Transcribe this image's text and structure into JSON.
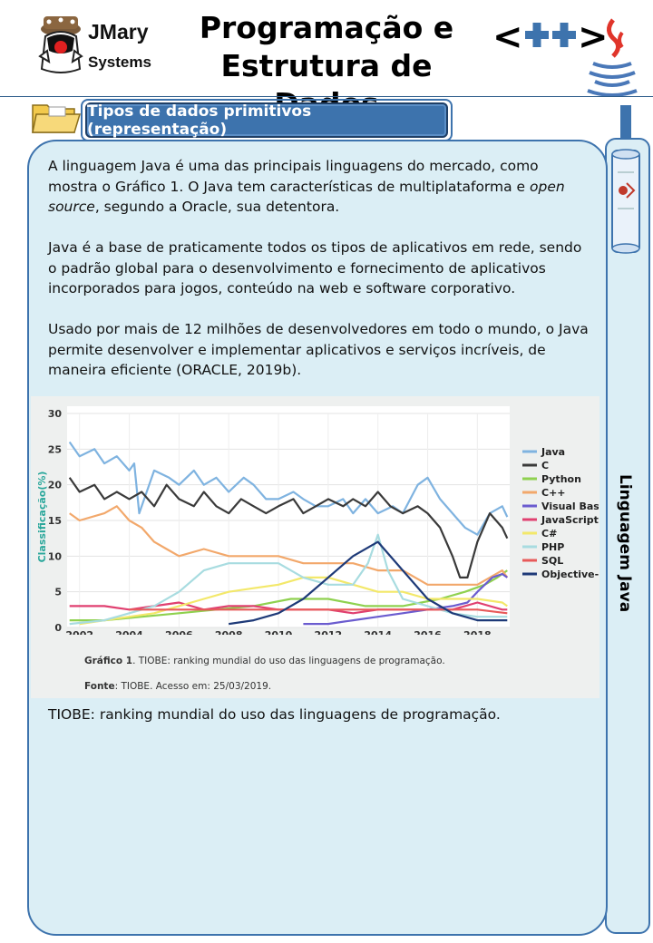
{
  "header": {
    "brand_name": "JMary",
    "brand_sub": "Systems",
    "title_line1": "Programação e",
    "title_line2": "Estrutura de Dados",
    "cpp_label": "<++>"
  },
  "section": {
    "label": "Tipos de dados primitivos (representação)",
    "side_label": "Linguagem Java"
  },
  "paragraphs": {
    "p1_a": "A linguagem Java é uma das principais linguagens do mercado, como mostra o Gráfico 1. O Java tem características de multiplataforma e ",
    "p1_em": "open source",
    "p1_b": ", segundo a Oracle, sua detentora.",
    "p2": "Java é a base de praticamente todos os tipos de aplicativos em rede, sendo o padrão global para o desenvolvimento e fornecimento de aplicativos incorporados para jogos, conteúdo na web e software corporativo.",
    "p3": "Usado por mais de 12 milhões de desenvolvedores em todo o mundo, o Java permite desenvolver e implementar aplicativos e serviços incríveis, de maneira eficiente (ORACLE, 2019b).",
    "after_chart": "TIOBE: ranking mundial do uso das linguagens de programação."
  },
  "caption": {
    "fig_label": "Gráfico 1",
    "fig_text": ". TIOBE: ranking mundial do uso das linguagens de programação.",
    "src_label": "Fonte",
    "src_text": ": TIOBE. Acesso em: 25/03/2019."
  },
  "colors": {
    "accent": "#3d73ad",
    "panel": "#dbeef5"
  },
  "chart_data": {
    "type": "line",
    "ylabel": "Classificação(%)",
    "xlabel": "",
    "xlim": [
      2001.5,
      2019.3
    ],
    "ylim": [
      0,
      30
    ],
    "xticks": [
      2002,
      2004,
      2006,
      2008,
      2010,
      2012,
      2014,
      2016,
      2018
    ],
    "yticks": [
      0,
      5,
      10,
      15,
      20,
      25,
      30
    ],
    "grid": true,
    "legend_position": "right",
    "series": [
      {
        "name": "Java",
        "color": "#7fb3e0",
        "x": [
          2001.6,
          2002,
          2002.6,
          2003,
          2003.5,
          2004,
          2004.2,
          2004.4,
          2005,
          2005.6,
          2006,
          2006.6,
          2007,
          2007.5,
          2008,
          2008.6,
          2009,
          2009.5,
          2010,
          2010.6,
          2011,
          2011.5,
          2012,
          2012.6,
          2013,
          2013.5,
          2014,
          2014.6,
          2015,
          2015.6,
          2016,
          2016.5,
          2017,
          2017.5,
          2018,
          2018.5,
          2019,
          2019.2
        ],
        "y": [
          26,
          24,
          25,
          23,
          24,
          22,
          23,
          16,
          22,
          21,
          20,
          22,
          20,
          21,
          19,
          21,
          20,
          18,
          18,
          19,
          18,
          17,
          17,
          18,
          16,
          18,
          16,
          17,
          16,
          20,
          21,
          18,
          16,
          14,
          13,
          16,
          17,
          15.5
        ]
      },
      {
        "name": "C",
        "color": "#3a3a3a",
        "x": [
          2001.6,
          2002,
          2002.6,
          2003,
          2003.5,
          2004,
          2004.5,
          2005,
          2005.5,
          2006,
          2006.6,
          2007,
          2007.5,
          2008,
          2008.5,
          2009,
          2009.5,
          2010,
          2010.6,
          2011,
          2011.5,
          2012,
          2012.6,
          2013,
          2013.5,
          2014,
          2014.5,
          2015,
          2015.6,
          2016,
          2016.5,
          2017,
          2017.3,
          2017.6,
          2018,
          2018.5,
          2019,
          2019.2
        ],
        "y": [
          21,
          19,
          20,
          18,
          19,
          18,
          19,
          17,
          20,
          18,
          17,
          19,
          17,
          16,
          18,
          17,
          16,
          17,
          18,
          16,
          17,
          18,
          17,
          18,
          17,
          19,
          17,
          16,
          17,
          16,
          14,
          10,
          7,
          7,
          12,
          16,
          14,
          12.5
        ]
      },
      {
        "name": "Python",
        "color": "#8fd14f",
        "x": [
          2001.6,
          2003,
          2004.5,
          2006,
          2007.5,
          2009,
          2010.5,
          2012,
          2013.5,
          2015,
          2016.5,
          2017.5,
          2018.3,
          2018.8,
          2019.2
        ],
        "y": [
          1,
          1,
          1.5,
          2,
          2.5,
          3,
          4,
          4,
          3,
          3,
          4,
          5,
          6,
          7,
          8
        ]
      },
      {
        "name": "C++",
        "color": "#f2a86b",
        "x": [
          2001.6,
          2002,
          2003,
          2003.5,
          2004,
          2004.5,
          2005,
          2005.5,
          2006,
          2007,
          2008,
          2009,
          2010,
          2011,
          2012,
          2013,
          2014,
          2015,
          2016,
          2017,
          2018,
          2019,
          2019.2
        ],
        "y": [
          16,
          15,
          16,
          17,
          15,
          14,
          12,
          11,
          10,
          11,
          10,
          10,
          10,
          9,
          9,
          9,
          8,
          8,
          6,
          6,
          6,
          8,
          7
        ]
      },
      {
        "name": "Visual Basic .NET",
        "color": "#6b5ccf",
        "x": [
          2011,
          2012,
          2013,
          2014,
          2015,
          2016,
          2017,
          2017.6,
          2018,
          2018.6,
          2019,
          2019.2
        ],
        "y": [
          0.5,
          0.5,
          1,
          1.5,
          2,
          2.5,
          3,
          3.5,
          5,
          7,
          7.5,
          7
        ]
      },
      {
        "name": "JavaScript",
        "color": "#e04070",
        "x": [
          2001.6,
          2003,
          2004,
          2005,
          2006,
          2007,
          2008,
          2009,
          2010,
          2011,
          2012,
          2013,
          2014,
          2015,
          2016,
          2017,
          2018,
          2019,
          2019.2
        ],
        "y": [
          3,
          3,
          2.5,
          3,
          3.5,
          2.5,
          3,
          3,
          2.5,
          2.5,
          2.5,
          2,
          2.5,
          2.5,
          2.5,
          2.5,
          3.5,
          2.5,
          2.5
        ]
      },
      {
        "name": "C#",
        "color": "#f3e86a",
        "x": [
          2002,
          2003,
          2004,
          2005,
          2006,
          2007,
          2008,
          2009,
          2010,
          2011,
          2012,
          2013,
          2014,
          2015,
          2016,
          2017,
          2018,
          2019,
          2019.2
        ],
        "y": [
          0.5,
          1,
          1.5,
          2,
          3,
          4,
          5,
          5.5,
          6,
          7,
          7,
          6,
          5,
          5,
          4,
          4,
          4,
          3.5,
          3
        ]
      },
      {
        "name": "PHP",
        "color": "#a8dce0",
        "x": [
          2001.6,
          2003,
          2004,
          2005,
          2006,
          2007,
          2008,
          2009,
          2010,
          2011,
          2012,
          2013,
          2013.6,
          2014,
          2014.4,
          2015,
          2016,
          2017,
          2018,
          2019,
          2019.2
        ],
        "y": [
          0.5,
          1,
          2,
          3,
          5,
          8,
          9,
          9,
          9,
          7,
          6,
          6,
          9,
          13,
          8,
          4,
          3,
          2,
          1.5,
          1.5,
          1.5
        ]
      },
      {
        "name": "SQL",
        "color": "#e85a5a",
        "x": [
          2004,
          2008,
          2012,
          2016,
          2018,
          2019.2
        ],
        "y": [
          2.5,
          2.5,
          2.5,
          2.5,
          2.5,
          2
        ]
      },
      {
        "name": "Objective-C",
        "color": "#1e3a78",
        "x": [
          2008,
          2009,
          2010,
          2011,
          2012,
          2013,
          2014,
          2015,
          2016,
          2017,
          2018,
          2019,
          2019.2
        ],
        "y": [
          0.5,
          1,
          2,
          4,
          7,
          10,
          12,
          8,
          4,
          2,
          1,
          1,
          1
        ]
      }
    ]
  }
}
